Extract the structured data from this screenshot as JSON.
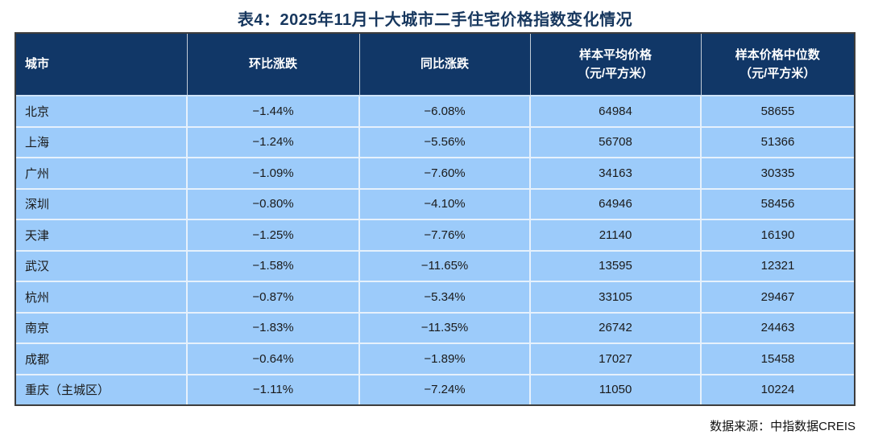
{
  "title": "表4：2025年11月十大城市二手住宅价格指数变化情况",
  "table": {
    "columns": [
      {
        "label": "城市",
        "sub": ""
      },
      {
        "label": "环比涨跌",
        "sub": ""
      },
      {
        "label": "同比涨跌",
        "sub": ""
      },
      {
        "label": "样本平均价格",
        "sub": "（元/平方米）"
      },
      {
        "label": "样本价格中位数",
        "sub": "（元/平方米）"
      }
    ],
    "rows": [
      {
        "city": "北京",
        "mom": "−1.44%",
        "yoy": "−6.08%",
        "avg_price": "64984",
        "median_price": "58655"
      },
      {
        "city": "上海",
        "mom": "−1.24%",
        "yoy": "−5.56%",
        "avg_price": "56708",
        "median_price": "51366"
      },
      {
        "city": "广州",
        "mom": "−1.09%",
        "yoy": "−7.60%",
        "avg_price": "34163",
        "median_price": "30335"
      },
      {
        "city": "深圳",
        "mom": "−0.80%",
        "yoy": "−4.10%",
        "avg_price": "64946",
        "median_price": "58456"
      },
      {
        "city": "天津",
        "mom": "−1.25%",
        "yoy": "−7.76%",
        "avg_price": "21140",
        "median_price": "16190"
      },
      {
        "city": "武汉",
        "mom": "−1.58%",
        "yoy": "−11.65%",
        "avg_price": "13595",
        "median_price": "12321"
      },
      {
        "city": "杭州",
        "mom": "−0.87%",
        "yoy": "−5.34%",
        "avg_price": "33105",
        "median_price": "29467"
      },
      {
        "city": "南京",
        "mom": "−1.83%",
        "yoy": "−11.35%",
        "avg_price": "26742",
        "median_price": "24463"
      },
      {
        "city": "成都",
        "mom": "−0.64%",
        "yoy": "−1.89%",
        "avg_price": "17027",
        "median_price": "15458"
      },
      {
        "city": "重庆（主城区）",
        "mom": "−1.11%",
        "yoy": "−7.24%",
        "avg_price": "11050",
        "median_price": "10224"
      }
    ]
  },
  "footer": {
    "source": "数据来源：中指数据CREIS"
  },
  "colors": {
    "title_text": "#17375E",
    "header_bg": "#113767",
    "header_text": "#FFFFFF",
    "row_bg": "#9CCBFA",
    "grid_line": "#E6F1FC",
    "outer_border": "#3D3D3D",
    "cell_text": "#1A1A1A"
  },
  "chart_data": {
    "type": "table",
    "title": "表4：2025年11月十大城市二手住宅价格指数变化情况",
    "columns": [
      "城市",
      "环比涨跌",
      "同比涨跌",
      "样本平均价格（元/平方米）",
      "样本价格中位数（元/平方米）"
    ],
    "rows": [
      [
        "北京",
        "−1.44%",
        "−6.08%",
        64984,
        58655
      ],
      [
        "上海",
        "−1.24%",
        "−5.56%",
        56708,
        51366
      ],
      [
        "广州",
        "−1.09%",
        "−7.60%",
        34163,
        30335
      ],
      [
        "深圳",
        "−0.80%",
        "−4.10%",
        64946,
        58456
      ],
      [
        "天津",
        "−1.25%",
        "−7.76%",
        21140,
        16190
      ],
      [
        "武汉",
        "−1.58%",
        "−11.65%",
        13595,
        12321
      ],
      [
        "杭州",
        "−0.87%",
        "−5.34%",
        33105,
        29467
      ],
      [
        "南京",
        "−1.83%",
        "−11.35%",
        26742,
        24463
      ],
      [
        "成都",
        "−0.64%",
        "−1.89%",
        17027,
        15458
      ],
      [
        "重庆（主城区）",
        "−1.11%",
        "−7.24%",
        11050,
        10224
      ]
    ],
    "source": "数据来源：中指数据CREIS"
  }
}
